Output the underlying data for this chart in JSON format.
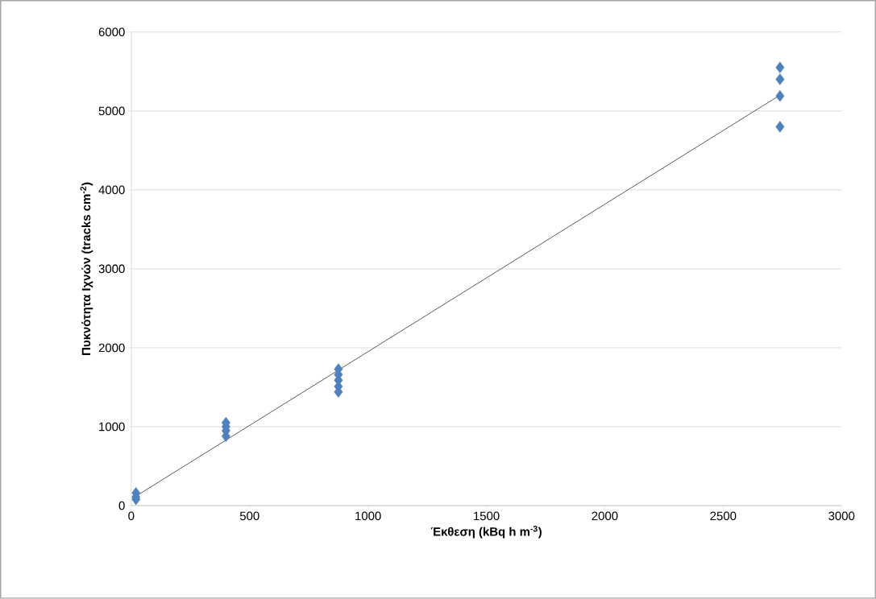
{
  "chart_data": {
    "type": "scatter",
    "xlabel": "Έκθεση (kBq h m$^{-3}$)",
    "ylabel": "Πυκνότητα Ιχνών (tracks cm$^{-2}$)",
    "xlim": [
      0,
      3000
    ],
    "xticks": [
      0,
      500,
      1000,
      1500,
      2000,
      2500,
      3000
    ],
    "ylim": [
      0,
      6000
    ],
    "yticks": [
      0,
      1000,
      2000,
      3000,
      4000,
      5000,
      6000
    ],
    "grid": "y",
    "marker": "diamond",
    "legend": false,
    "series": [
      {
        "color": "#4f81bd",
        "x": [
          20,
          20,
          20,
          400,
          400,
          400,
          400,
          875,
          875,
          875,
          875,
          875,
          2740,
          2740,
          2740,
          2740
        ],
        "values": [
          160,
          110,
          80,
          1050,
          1000,
          950,
          880,
          1730,
          1660,
          1590,
          1510,
          1440,
          5550,
          5400,
          5190,
          4800
        ]
      },
      {
        "type": "line",
        "color": "#333333",
        "marker": "none",
        "x": [
          20,
          2740
        ],
        "values": [
          120,
          5200
        ]
      }
    ]
  }
}
